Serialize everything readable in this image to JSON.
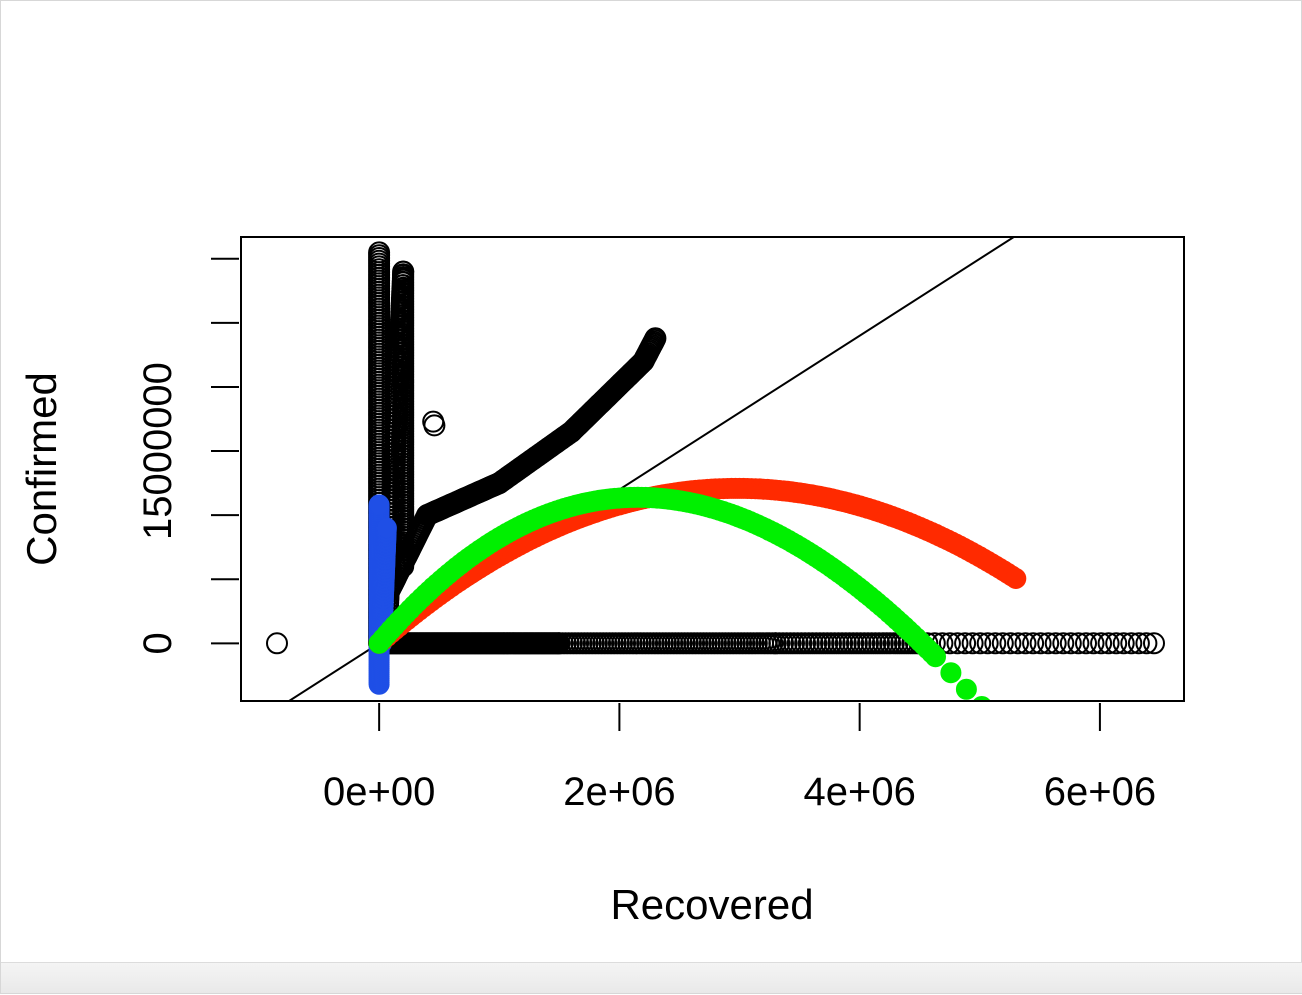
{
  "chart_data": {
    "type": "scatter",
    "xlabel": "Recovered",
    "ylabel": "Confirmed",
    "xlim": [
      -1150000,
      6700000
    ],
    "ylim": [
      -4500000,
      31700000
    ],
    "x_ticks": [
      0,
      2000000,
      4000000,
      6000000
    ],
    "x_tick_labels": [
      "0e+00",
      "2e+06",
      "4e+06",
      "6e+06"
    ],
    "y_ticks": [
      0,
      5000000,
      10000000,
      15000000,
      20000000,
      25000000,
      30000000
    ],
    "y_tick_labels": [
      "0",
      "",
      "",
      "15000000",
      "",
      "",
      ""
    ],
    "colors": {
      "observed": "#000000",
      "blue": "#1f4fe6",
      "red": "#ff2a00",
      "green": "#00f000",
      "diagonal": "#000000"
    },
    "reference_line": {
      "slope": 6.0,
      "intercept": 0
    },
    "series": [
      {
        "marker": "open-circle",
        "color": "observed",
        "points": [
          [
            -850000,
            0
          ],
          [
            450000,
            17300000
          ],
          [
            460000,
            17000000
          ]
        ],
        "segments": [
          {
            "from": [
              0,
              0
            ],
            "to": [
              0,
              30500000
            ],
            "n": 140
          },
          {
            "from": [
              200000,
              6000000
            ],
            "to": [
              200000,
              29000000
            ],
            "n": 110
          },
          {
            "from": [
              60000,
              0
            ],
            "to": [
              200000,
              29000000
            ],
            "n": 110
          },
          {
            "from": [
              80000,
              4000000
            ],
            "to": [
              400000,
              10000000
            ],
            "n": 40
          },
          {
            "from": [
              400000,
              10000000
            ],
            "to": [
              1000000,
              12500000
            ],
            "n": 60
          },
          {
            "from": [
              1000000,
              12500000
            ],
            "to": [
              1600000,
              16500000
            ],
            "n": 60
          },
          {
            "from": [
              1600000,
              16500000
            ],
            "to": [
              2200000,
              22000000
            ],
            "n": 60
          },
          {
            "from": [
              2200000,
              22000000
            ],
            "to": [
              2300000,
              23800000
            ],
            "n": 15
          },
          {
            "from": [
              0,
              0
            ],
            "to": [
              1500000,
              0
            ],
            "n": 150
          },
          {
            "from": [
              1500000,
              0
            ],
            "to": [
              3300000,
              0
            ],
            "n": 70
          },
          {
            "from": [
              3300000,
              0
            ],
            "to": [
              4500000,
              0
            ],
            "n": 40
          },
          {
            "from": [
              4500000,
              0
            ],
            "to": [
              6450000,
              0
            ],
            "n": 32
          }
        ]
      },
      {
        "marker": "filled-circle",
        "color": "blue",
        "segments": [
          {
            "from": [
              0,
              -3200000
            ],
            "to": [
              0,
              10800000
            ],
            "n": 90
          },
          {
            "from": [
              20000,
              0
            ],
            "to": [
              60000,
              9000000
            ],
            "n": 40
          }
        ]
      },
      {
        "marker": "filled-circle",
        "color": "red",
        "curve": "cubic",
        "coef": [
          0,
          8.2,
          -1.42e-06,
          1e-14
        ],
        "x_from": 0,
        "x_to": 5300000,
        "n": 160
      },
      {
        "marker": "filled-circle",
        "color": "green",
        "curve": "cubic",
        "coef": [
          0,
          11.0,
          -2.85e-06,
          9.2e-14
        ],
        "x_from": 0,
        "x_to": 6400000,
        "n": 200,
        "sparse_after": 4600000
      }
    ]
  }
}
